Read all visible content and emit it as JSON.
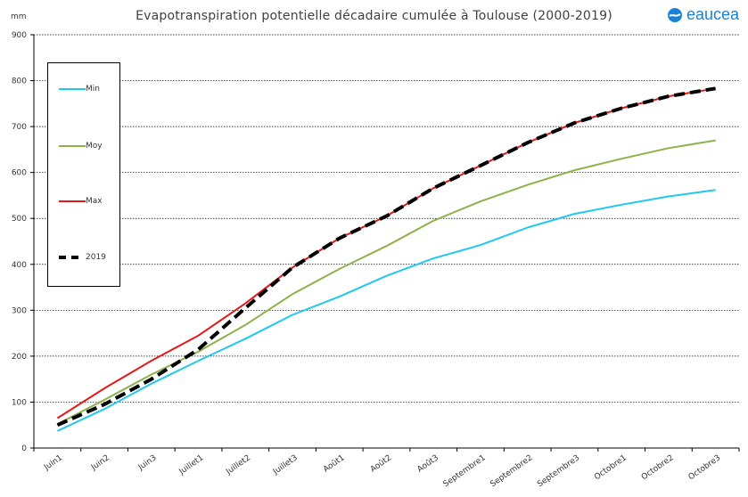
{
  "chart_data": {
    "type": "line",
    "title": "Evapotranspiration potentielle décadaire cumulée à Toulouse (2000-2019)",
    "unit_label": "mm",
    "brand": "eaucea",
    "categories": [
      "Juin1",
      "Juin2",
      "Juin3",
      "Juillet1",
      "Juillet2",
      "Juillet3",
      "Août1",
      "Août2",
      "Août3",
      "Septembre1",
      "Septembre2",
      "Septembre3",
      "Octobre1",
      "Octobre2",
      "Octobre3"
    ],
    "ylim": [
      0,
      900
    ],
    "yticks": [
      0,
      100,
      200,
      300,
      400,
      500,
      600,
      700,
      800,
      900
    ],
    "grid": true,
    "legend_position": "top-left",
    "series": [
      {
        "name": "Min",
        "color": "#1ec8f0",
        "dash": "solid",
        "values": [
          37,
          85,
          140,
          190,
          238,
          290,
          330,
          375,
          413,
          442,
          480,
          510,
          530,
          548,
          562
        ]
      },
      {
        "name": "Moy",
        "color": "#8db24a",
        "dash": "solid",
        "values": [
          52,
          105,
          160,
          210,
          268,
          335,
          390,
          440,
          495,
          537,
          573,
          605,
          630,
          653,
          670
        ]
      },
      {
        "name": "Max",
        "color": "#e41a1a",
        "dash": "solid",
        "values": [
          65,
          130,
          190,
          245,
          315,
          393,
          457,
          505,
          566,
          615,
          665,
          708,
          740,
          766,
          783
        ]
      },
      {
        "name": "2019",
        "color": "#000000",
        "dash": "dashed",
        "values": [
          50,
          95,
          150,
          215,
          305,
          393,
          457,
          505,
          566,
          615,
          665,
          708,
          740,
          766,
          783
        ]
      }
    ]
  }
}
